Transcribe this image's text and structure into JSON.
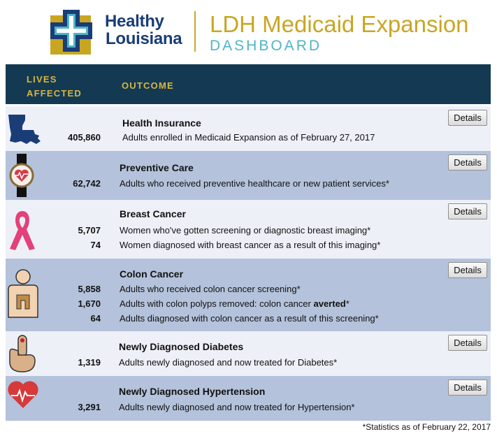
{
  "header": {
    "logo_line1": "Healthy",
    "logo_line2": "Louisiana",
    "title": "LDH Medicaid Expansion",
    "subtitle": "DASHBOARD"
  },
  "table": {
    "col_lives_line1": "LIVES",
    "col_lives_line2": "AFFECTED",
    "col_outcome": "OUTCOME"
  },
  "details_label": "Details",
  "rows": [
    {
      "icon": "louisiana-map-icon",
      "title": "Health Insurance",
      "numbers": [
        "405,860"
      ],
      "descriptions": [
        "Adults enrolled in Medicaid Expansion as of February 27, 2017"
      ]
    },
    {
      "icon": "heart-watch-icon",
      "title": "Preventive Care",
      "numbers": [
        "62,742"
      ],
      "descriptions": [
        "Adults who received preventive healthcare or new patient services*"
      ]
    },
    {
      "icon": "pink-ribbon-icon",
      "title": "Breast Cancer",
      "numbers": [
        "5,707",
        "74"
      ],
      "descriptions": [
        "Women who've gotten screening or diagnostic breast imaging*",
        "Women diagnosed with breast cancer as a result of this imaging*"
      ]
    },
    {
      "icon": "body-colon-icon",
      "title": "Colon Cancer",
      "numbers": [
        "5,858",
        "1,670",
        "64"
      ],
      "descriptions": [
        "Adults who received colon cancer screening*",
        "Adults with colon polyps removed: colon cancer ",
        "Adults diagnosed with colon cancer as a result of this screening*"
      ],
      "emphasis": "averted",
      "emphasis_suffix": "*"
    },
    {
      "icon": "finger-prick-icon",
      "title": "Newly Diagnosed Diabetes",
      "numbers": [
        "1,319"
      ],
      "descriptions": [
        "Adults newly diagnosed and now treated for Diabetes*"
      ]
    },
    {
      "icon": "heartbeat-icon",
      "title": "Newly Diagnosed Hypertension",
      "numbers": [
        "3,291"
      ],
      "descriptions": [
        "Adults newly diagnosed and now treated for Hypertension*"
      ]
    }
  ],
  "footnote": "*Statistics as of February 22, 2017",
  "colors": {
    "header_bar": "#133a52",
    "header_text": "#d9b540",
    "row_light": "#eef0f8",
    "row_blue": "#b4c2db",
    "logo_blue": "#1a3d78",
    "title_gold": "#c9a622",
    "subtitle_teal": "#4fb4c8"
  }
}
